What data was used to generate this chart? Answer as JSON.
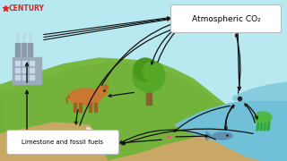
{
  "bg_sky": "#b8e8f0",
  "bg_land": "#78b840",
  "bg_land2": "#68a832",
  "bg_sand": "#c8a864",
  "bg_water": "#70c0d8",
  "bg_water2": "#88cce0",
  "arrow_color": "#111111",
  "box_fill": "#ffffff",
  "box_edge": "#cccccc",
  "factory_body": "#9aabba",
  "factory_window": "#c8d8e8",
  "chimney_color": "#8a9aaa",
  "smoke_color": "#c0c8d0",
  "label_co2": "Atmospheric CO₂",
  "label_limestone": "Limestone and fossil fuels",
  "century_color": "#dd2222",
  "century_text": "CENTURY",
  "cow_body": "#c87830",
  "tree_trunk": "#8b6030",
  "tree_top": "#58a828",
  "tree_top2": "#48981c"
}
